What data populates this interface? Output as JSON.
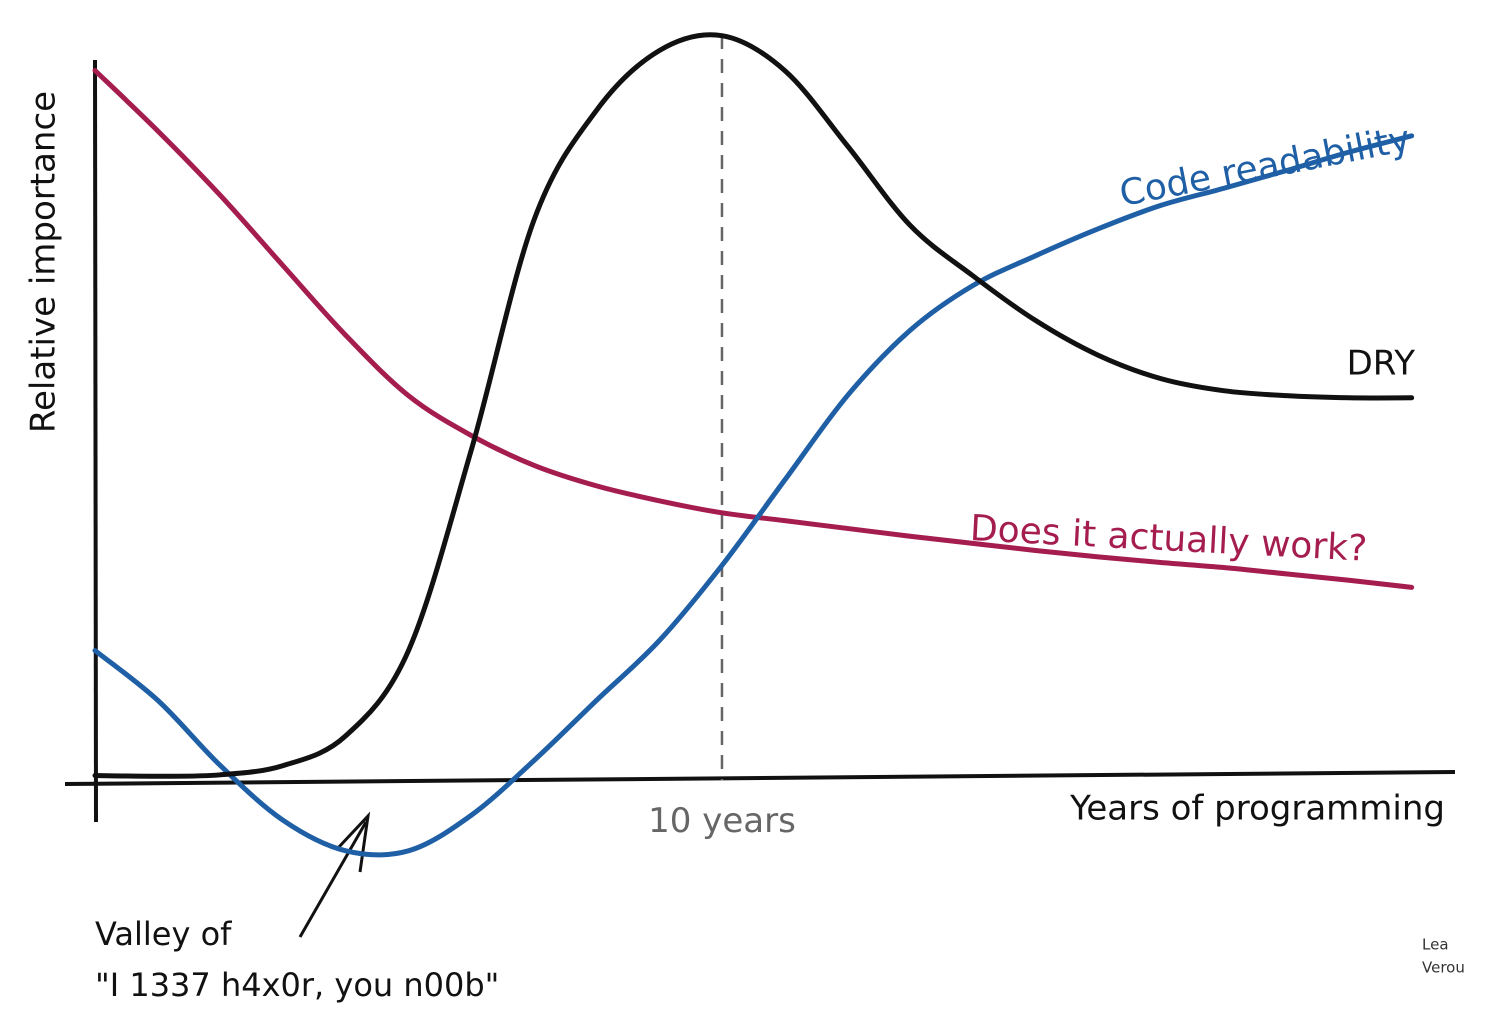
{
  "chart_data": {
    "type": "line",
    "x": [
      0,
      1,
      2,
      3,
      4,
      5,
      6,
      7,
      8,
      9,
      10,
      11,
      12,
      13,
      14,
      15,
      16,
      17,
      18,
      19,
      20,
      21
    ],
    "series": [
      {
        "name": "Does it actually work?",
        "color": "#a51d4f",
        "values": [
          100,
          91.5,
          82.4,
          72.5,
          62.7,
          54.2,
          48.6,
          44.4,
          41.5,
          39.4,
          37.7,
          36.6,
          35.5,
          34.4,
          33.4,
          32.4,
          31.5,
          30.7,
          30,
          29.1,
          28.2,
          27.2
        ]
      },
      {
        "name": "Code readability",
        "color": "#1f5fa6",
        "values": [
          18.3,
          11.3,
          2.1,
          -5.6,
          -9.9,
          -9.9,
          -4.9,
          2.8,
          11.3,
          19.7,
          30.3,
          42.3,
          54.2,
          63.4,
          69.7,
          73.9,
          77.7,
          81,
          83.4,
          85.9,
          88.5,
          90.8
        ]
      },
      {
        "name": "DRY",
        "color": "#111111",
        "values": [
          0.7,
          0.6,
          0.8,
          2.1,
          6.3,
          18.3,
          46.5,
          78.9,
          94.4,
          102.8,
          104.9,
          100,
          89.4,
          78.2,
          71.1,
          64.8,
          59.9,
          56.6,
          54.9,
          54.2,
          53.9,
          53.9
        ]
      }
    ],
    "xlim": [
      0,
      21.5
    ],
    "ylim": [
      -15,
      105
    ],
    "xticks": [
      {
        "value": 10,
        "label": "10 years"
      }
    ],
    "x_label": "Years of programming",
    "y_label": "Relative importance",
    "annotations": [
      "Valley of",
      "\"I 1337 h4x0r, you n00b\""
    ],
    "signature": [
      "Lea",
      "Verou"
    ]
  }
}
